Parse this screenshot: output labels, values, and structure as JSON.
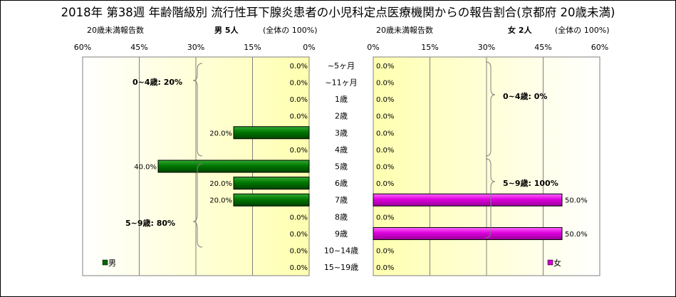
{
  "title": "2018年 第38週 年齢階級別 流行性耳下腺炎患者の小児科定点医療機関からの報告割合(京都府 20歳未満)",
  "left_header": {
    "count_label": "20歳未満報告数",
    "sex_label": "男 5人",
    "total_label": "(全体の 100%)"
  },
  "right_header": {
    "count_label": "20歳未満報告数",
    "sex_label": "女 2人",
    "total_label": "(全体の 100%)"
  },
  "chart_data": [
    {
      "type": "bar",
      "orientation": "horizontal",
      "direction": "reversed",
      "legend": "男",
      "legend_position": "bottom-left",
      "color": "#006600",
      "categories": [
        "~5ヶ月",
        "~11ヶ月",
        "1歳",
        "2歳",
        "3歳",
        "4歳",
        "5歳",
        "6歳",
        "7歳",
        "8歳",
        "9歳",
        "10~14歳",
        "15~19歳"
      ],
      "values": [
        0.0,
        0.0,
        0.0,
        0.0,
        20.0,
        0.0,
        40.0,
        20.0,
        20.0,
        0.0,
        0.0,
        0.0,
        0.0
      ],
      "value_labels": [
        "0.0%",
        "0.0%",
        "0.0%",
        "0.0%",
        "20.0%",
        "0.0%",
        "40.0%",
        "20.0%",
        "20.0%",
        "0.0%",
        "0.0%",
        "0.0%",
        "0.0%"
      ],
      "xlim": [
        0,
        60
      ],
      "xticks": [
        "0%",
        "15%",
        "30%",
        "45%",
        "60%"
      ],
      "grid": true,
      "annotations": [
        "0~4歳: 20%",
        "5~9歳: 80%"
      ]
    },
    {
      "type": "bar",
      "orientation": "horizontal",
      "legend": "女",
      "legend_position": "bottom-right",
      "color": "#CC00CC",
      "categories": [
        "~5ヶ月",
        "~11ヶ月",
        "1歳",
        "2歳",
        "3歳",
        "4歳",
        "5歳",
        "6歳",
        "7歳",
        "8歳",
        "9歳",
        "10~14歳",
        "15~19歳"
      ],
      "values": [
        0.0,
        0.0,
        0.0,
        0.0,
        0.0,
        0.0,
        0.0,
        0.0,
        50.0,
        0.0,
        50.0,
        0.0,
        0.0
      ],
      "value_labels": [
        "0.0%",
        "0.0%",
        "0.0%",
        "0.0%",
        "0.0%",
        "0.0%",
        "0.0%",
        "0.0%",
        "50.0%",
        "0.0%",
        "50.0%",
        "0.0%",
        "0.0%"
      ],
      "xlim": [
        0,
        60
      ],
      "xticks": [
        "0%",
        "15%",
        "30%",
        "45%",
        "60%"
      ],
      "grid": true,
      "annotations": [
        "0~4歳: 0%",
        "5~9歳: 100%"
      ]
    }
  ],
  "categories": [
    "~5ヶ月",
    "~11ヶ月",
    "1歳",
    "2歳",
    "3歳",
    "4歳",
    "5歳",
    "6歳",
    "7歳",
    "8歳",
    "9歳",
    "10~14歳",
    "15~19歳"
  ]
}
